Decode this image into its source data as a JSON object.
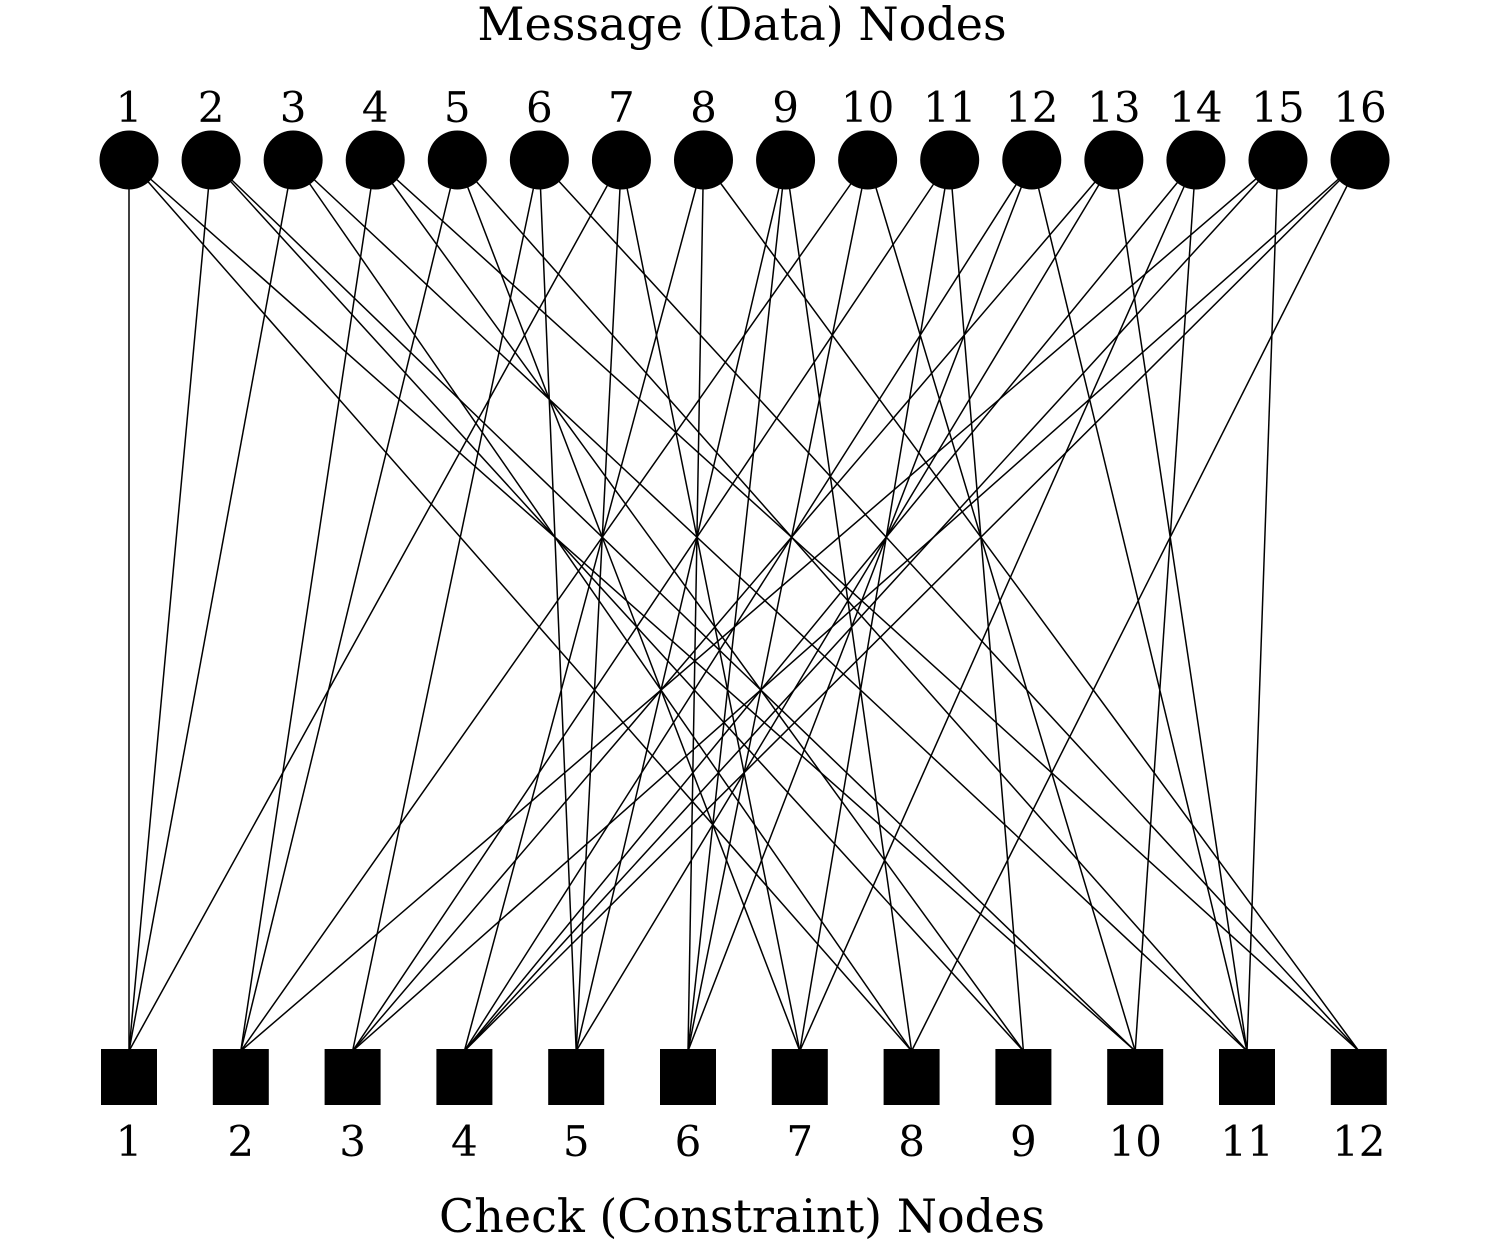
{
  "diagram": {
    "top_title": "Message (Data) Nodes",
    "bottom_title": "Check (Constraint) Nodes",
    "node_color": "#000000",
    "edge_color": "#000000",
    "message_nodes": [
      "1",
      "2",
      "3",
      "4",
      "5",
      "6",
      "7",
      "8",
      "9",
      "10",
      "11",
      "12",
      "13",
      "14",
      "15",
      "16"
    ],
    "check_nodes": [
      "1",
      "2",
      "3",
      "4",
      "5",
      "6",
      "7",
      "8",
      "9",
      "10",
      "11",
      "12"
    ],
    "edges": [
      [
        1,
        1
      ],
      [
        1,
        8
      ],
      [
        1,
        10
      ],
      [
        2,
        1
      ],
      [
        2,
        9
      ],
      [
        2,
        10
      ],
      [
        3,
        1
      ],
      [
        3,
        8
      ],
      [
        3,
        11
      ],
      [
        4,
        2
      ],
      [
        4,
        9
      ],
      [
        4,
        12
      ],
      [
        5,
        2
      ],
      [
        5,
        7
      ],
      [
        5,
        11
      ],
      [
        6,
        3
      ],
      [
        6,
        5
      ],
      [
        6,
        12
      ],
      [
        7,
        1
      ],
      [
        7,
        5
      ],
      [
        7,
        7
      ],
      [
        8,
        4
      ],
      [
        8,
        6
      ],
      [
        8,
        12
      ],
      [
        9,
        5
      ],
      [
        9,
        6
      ],
      [
        9,
        8
      ],
      [
        10,
        2
      ],
      [
        10,
        6
      ],
      [
        10,
        10
      ],
      [
        11,
        3
      ],
      [
        11,
        7
      ],
      [
        11,
        9
      ],
      [
        12,
        4
      ],
      [
        12,
        6
      ],
      [
        12,
        11
      ],
      [
        13,
        3
      ],
      [
        13,
        5
      ],
      [
        13,
        11
      ],
      [
        14,
        4
      ],
      [
        14,
        7
      ],
      [
        14,
        10
      ],
      [
        15,
        2
      ],
      [
        15,
        4
      ],
      [
        15,
        11
      ],
      [
        16,
        3
      ],
      [
        16,
        4
      ],
      [
        16,
        8
      ]
    ]
  }
}
